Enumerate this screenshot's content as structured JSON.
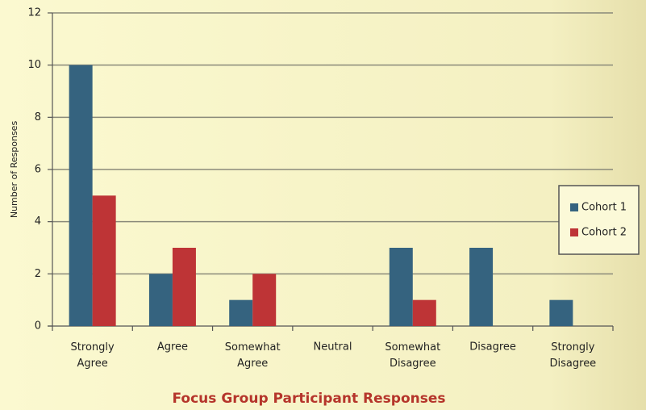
{
  "chart_data": {
    "type": "bar",
    "x_label": "Focus Group Participant Responses",
    "y_label": "Number of Responses",
    "categories": [
      "Strongly Agree",
      "Agree",
      "Somewhat Agree",
      "Neutral",
      "Somewhat Disagree",
      "Disagree",
      "Strongly Disagree"
    ],
    "series": [
      {
        "name": "Cohort 1",
        "color": "#35637f",
        "values": [
          10,
          2,
          1,
          0,
          3,
          3,
          1
        ]
      },
      {
        "name": "Cohort 2",
        "color": "#be3436",
        "values": [
          5,
          3,
          2,
          0,
          1,
          0,
          0
        ]
      }
    ],
    "ylim": [
      0,
      12
    ],
    "yticks": [
      0,
      2,
      4,
      6,
      8,
      10,
      12
    ],
    "grid": true,
    "legend": "right"
  }
}
